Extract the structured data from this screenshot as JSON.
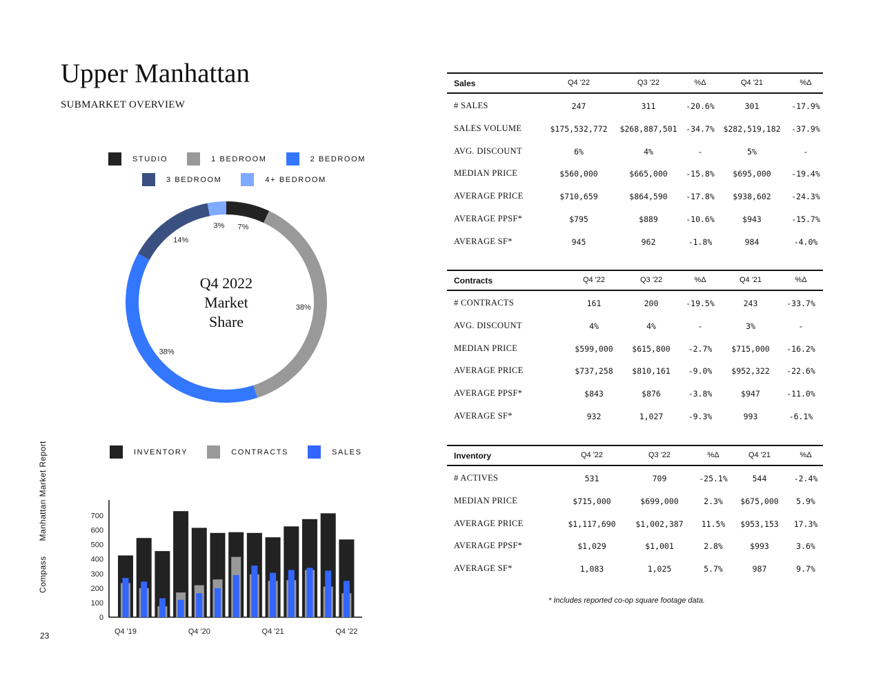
{
  "title": "Upper Manhattan",
  "subtitle": "SUBMARKET OVERVIEW",
  "side_label": {
    "brand": "Compass",
    "report": "Manhattan Market Report"
  },
  "page_number": "23",
  "footnote": "* Includes reported co-op square footage data.",
  "colors": {
    "studio": "#222222",
    "one_bed": "#999999",
    "two_bed": "#3377ff",
    "three_bed": "#3a5080",
    "four_bed": "#7faaff",
    "inventory": "#222222",
    "contracts": "#999999",
    "sales": "#3366ff"
  },
  "donut_legend": [
    "STUDIO",
    "1 BEDROOM",
    "2 BEDROOM",
    "3 BEDROOM",
    "4+ BEDROOM"
  ],
  "donut_center": [
    "Q4 2022",
    "Market",
    "Share"
  ],
  "bar_legend": [
    "INVENTORY",
    "CONTRACTS",
    "SALES"
  ],
  "chart_data": [
    {
      "type": "pie",
      "title": "Q4 2022 Market Share",
      "categories": [
        "STUDIO",
        "1 BEDROOM",
        "2 BEDROOM",
        "3 BEDROOM",
        "4+ BEDROOM"
      ],
      "values": [
        7,
        38,
        38,
        14,
        3
      ],
      "labels": [
        "7%",
        "38%",
        "38%",
        "14%",
        "3%"
      ]
    },
    {
      "type": "bar",
      "categories": [
        "Q4 '19",
        "Q1 '20",
        "Q2 '20",
        "Q3 '20",
        "Q4 '20",
        "Q1 '21",
        "Q2 '21",
        "Q3 '21",
        "Q4 '21",
        "Q1 '22",
        "Q2 '22",
        "Q3 '22",
        "Q4 '22"
      ],
      "tick_labels": [
        "Q4 '19",
        "Q4 '20",
        "Q4 '21",
        "Q4 '22"
      ],
      "series": [
        {
          "name": "INVENTORY",
          "values": [
            425,
            545,
            455,
            730,
            615,
            580,
            585,
            580,
            550,
            625,
            675,
            715,
            535
          ]
        },
        {
          "name": "CONTRACTS",
          "values": [
            235,
            200,
            75,
            170,
            220,
            260,
            415,
            295,
            250,
            255,
            325,
            210,
            165
          ]
        },
        {
          "name": "SALES",
          "values": [
            270,
            245,
            130,
            120,
            165,
            200,
            290,
            355,
            305,
            325,
            340,
            320,
            250
          ]
        }
      ],
      "ylim": [
        0,
        750
      ],
      "yticks": [
        0,
        100,
        200,
        300,
        400,
        500,
        600,
        700
      ]
    }
  ],
  "tables": [
    {
      "section": "Sales",
      "columns": [
        "Q4 '22",
        "Q3 '22",
        "%Δ",
        "Q4 '21",
        "%Δ"
      ],
      "rows": [
        {
          "label": "# SALES",
          "values": [
            "247",
            "311",
            "-20.6%",
            "301",
            "-17.9%"
          ]
        },
        {
          "label": "SALES VOLUME",
          "values": [
            "$175,532,772",
            "$268,887,501",
            "-34.7%",
            "$282,519,182",
            "-37.9%"
          ]
        },
        {
          "label": "AVG. DISCOUNT",
          "values": [
            "6%",
            "4%",
            "-",
            "5%",
            "-"
          ]
        },
        {
          "label": "MEDIAN PRICE",
          "values": [
            "$560,000",
            "$665,000",
            "-15.8%",
            "$695,000",
            "-19.4%"
          ]
        },
        {
          "label": "AVERAGE PRICE",
          "values": [
            "$710,659",
            "$864,590",
            "-17.8%",
            "$938,602",
            "-24.3%"
          ]
        },
        {
          "label": "AVERAGE PPSF*",
          "values": [
            "$795",
            "$889",
            "-10.6%",
            "$943",
            "-15.7%"
          ]
        },
        {
          "label": "AVERAGE SF*",
          "values": [
            "945",
            "962",
            "-1.8%",
            "984",
            "-4.0%"
          ]
        }
      ]
    },
    {
      "section": "Contracts",
      "columns": [
        "Q4 '22",
        "Q3 '22",
        "%Δ",
        "Q4 '21",
        "%Δ"
      ],
      "rows": [
        {
          "label": "# CONTRACTS",
          "values": [
            "161",
            "200",
            "-19.5%",
            "243",
            "-33.7%"
          ]
        },
        {
          "label": "AVG. DISCOUNT",
          "values": [
            "4%",
            "4%",
            "-",
            "3%",
            "-"
          ]
        },
        {
          "label": "MEDIAN PRICE",
          "values": [
            "$599,000",
            "$615,800",
            "-2.7%",
            "$715,000",
            "-16.2%"
          ]
        },
        {
          "label": "AVERAGE PRICE",
          "values": [
            "$737,258",
            "$810,161",
            "-9.0%",
            "$952,322",
            "-22.6%"
          ]
        },
        {
          "label": "AVERAGE PPSF*",
          "values": [
            "$843",
            "$876",
            "-3.8%",
            "$947",
            "-11.0%"
          ]
        },
        {
          "label": "AVERAGE SF*",
          "values": [
            "932",
            "1,027",
            "-9.3%",
            "993",
            "-6.1%"
          ]
        }
      ]
    },
    {
      "section": "Inventory",
      "columns": [
        "Q4 '22",
        "Q3 '22",
        "%Δ",
        "Q4 '21",
        "%Δ"
      ],
      "rows": [
        {
          "label": "# ACTIVES",
          "values": [
            "531",
            "709",
            "-25.1%",
            "544",
            "-2.4%"
          ]
        },
        {
          "label": "MEDIAN PRICE",
          "values": [
            "$715,000",
            "$699,000",
            "2.3%",
            "$675,000",
            "5.9%"
          ]
        },
        {
          "label": "AVERAGE PRICE",
          "values": [
            "$1,117,690",
            "$1,002,387",
            "11.5%",
            "$953,153",
            "17.3%"
          ]
        },
        {
          "label": "AVERAGE PPSF*",
          "values": [
            "$1,029",
            "$1,001",
            "2.8%",
            "$993",
            "3.6%"
          ]
        },
        {
          "label": "AVERAGE SF*",
          "values": [
            "1,083",
            "1,025",
            "5.7%",
            "987",
            "9.7%"
          ]
        }
      ]
    }
  ]
}
